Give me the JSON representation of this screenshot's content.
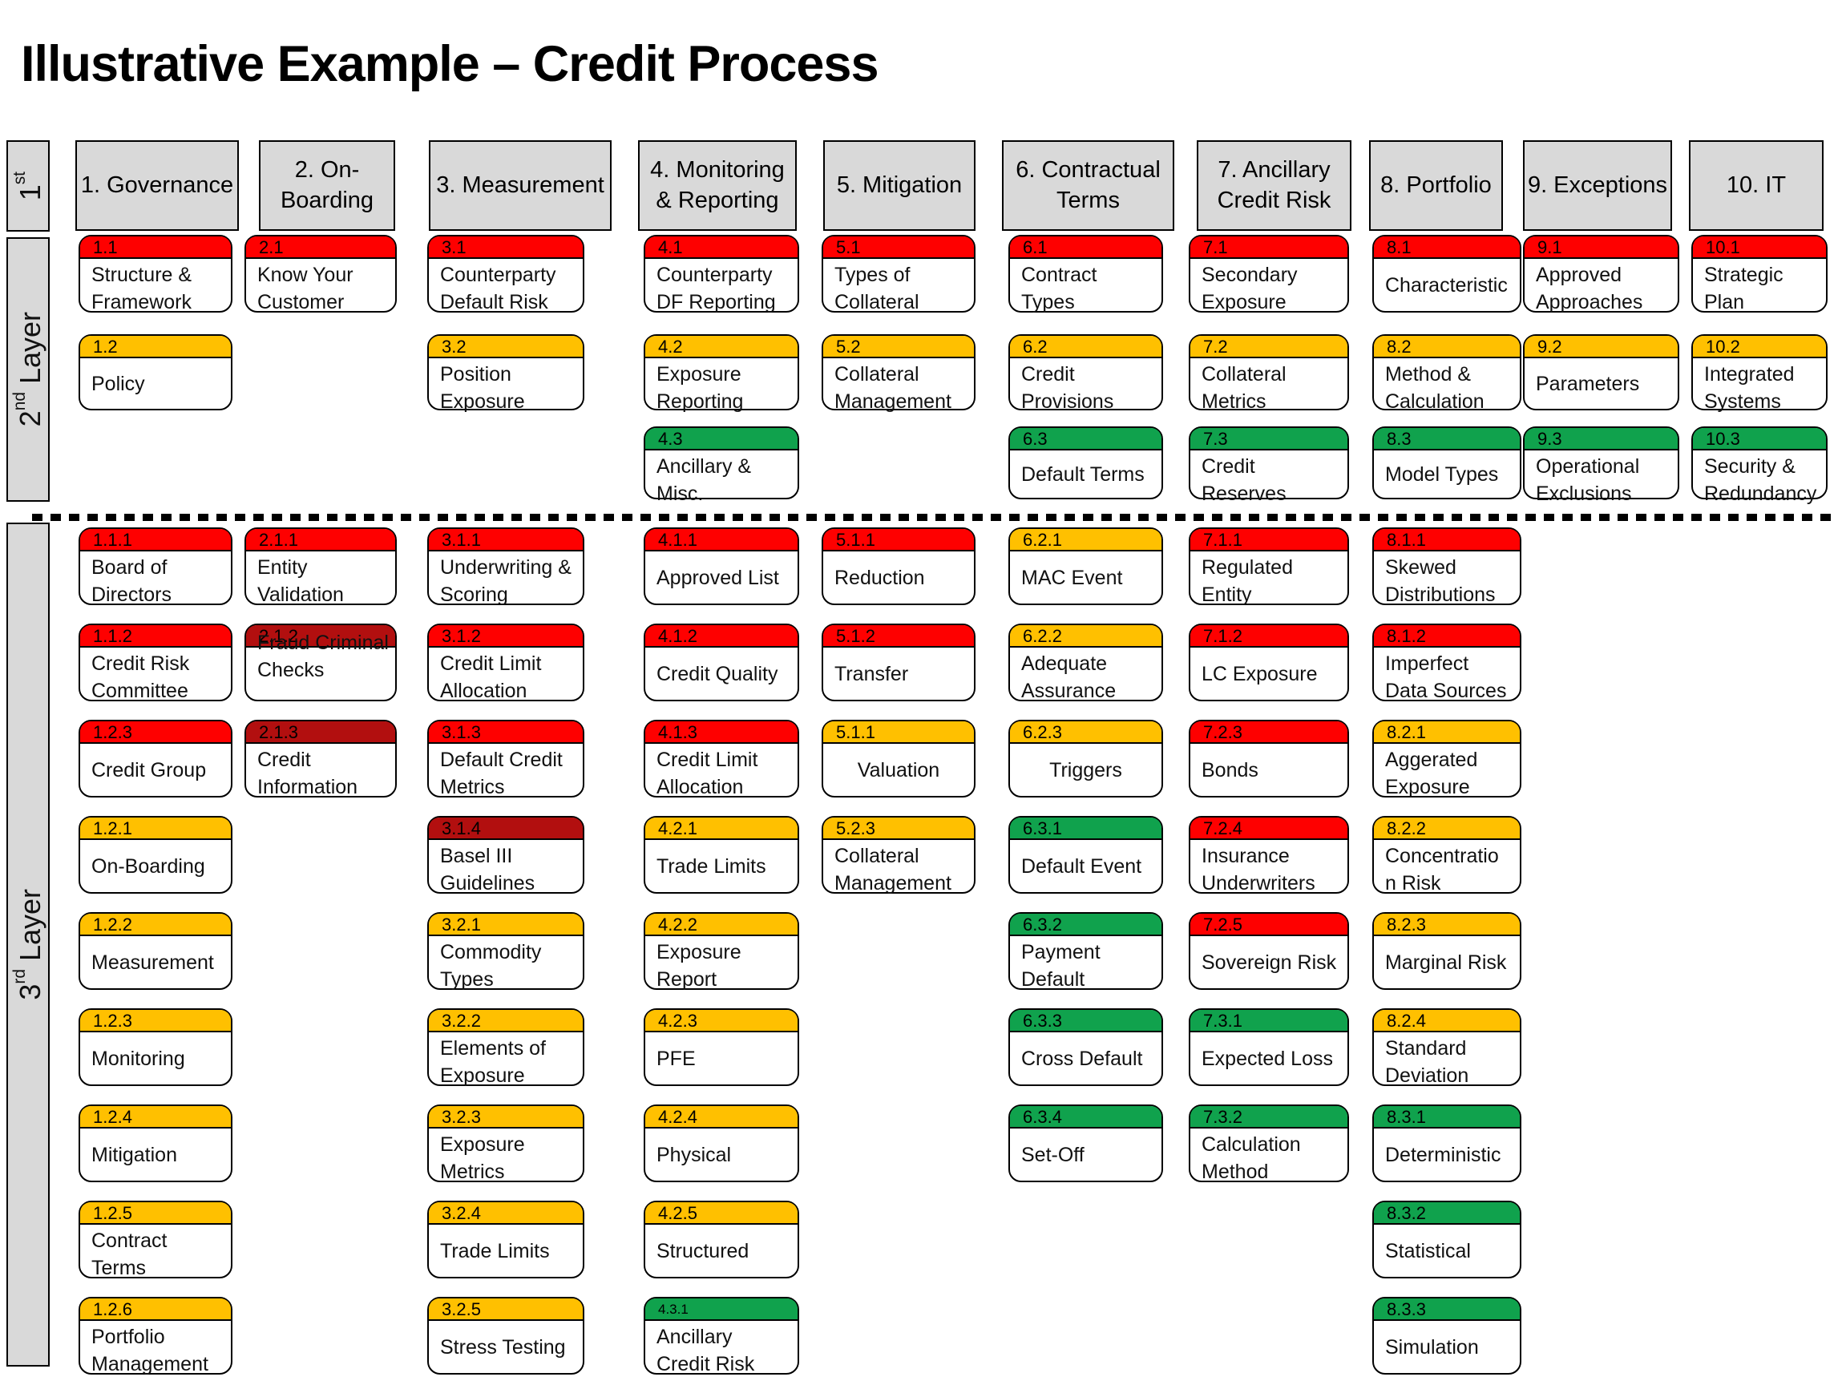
{
  "title": "Illustrative Example – Credit Process",
  "colors": {
    "red": "#FE0000",
    "dark_red": "#B20F0F",
    "amber": "#FFC000",
    "green": "#10A24D",
    "gray": "#D9D9D9"
  },
  "layer_labels": [
    {
      "num": "1",
      "ordinal": "st",
      "rest": ""
    },
    {
      "num": "2",
      "ordinal": "nd",
      "rest": " Layer"
    },
    {
      "num": "3",
      "ordinal": "rd",
      "rest": " Layer"
    }
  ],
  "columns": [
    {
      "header": "1. Governance",
      "layer2": [
        {
          "num": "1.1",
          "label": "Structure & Framework",
          "color": "red",
          "row": 0
        },
        {
          "num": "1.2",
          "label": "Policy",
          "color": "amber",
          "row": 1
        }
      ],
      "layer3": [
        {
          "num": "1.1.1",
          "label": "Board of Directors",
          "color": "red",
          "row": 0
        },
        {
          "num": "1.1.2",
          "label": "Credit Risk Committee",
          "color": "red",
          "row": 1
        },
        {
          "num": "1.2.3",
          "label": "Credit Group",
          "color": "red",
          "row": 2
        },
        {
          "num": "1.2.1",
          "label": "On-Boarding",
          "color": "amber",
          "row": 3
        },
        {
          "num": "1.2.2",
          "label": "Measurement",
          "color": "amber",
          "row": 4
        },
        {
          "num": "1.2.3",
          "label": "Monitoring",
          "color": "amber",
          "row": 5
        },
        {
          "num": "1.2.4",
          "label": "Mitigation",
          "color": "amber",
          "row": 6
        },
        {
          "num": "1.2.5",
          "label": "Contract Terms",
          "color": "amber",
          "row": 7
        },
        {
          "num": "1.2.6",
          "label": "Portfolio Management",
          "color": "amber",
          "row": 8
        }
      ]
    },
    {
      "header": "2. On-\nBoarding",
      "layer2": [
        {
          "num": "2.1",
          "label": "Know Your Customer",
          "color": "red",
          "row": 0
        }
      ],
      "layer3": [
        {
          "num": "2.1.1",
          "label": "Entity Validation",
          "color": "red",
          "row": 0
        },
        {
          "num": "2.1.2",
          "label": "Fraud Criminal Checks",
          "color": "dark_red",
          "row": 1,
          "overlap": true
        },
        {
          "num": "2.1.3",
          "label": "Credit Information",
          "color": "dark_red",
          "row": 2
        }
      ]
    },
    {
      "header": "3. Measurement",
      "layer2": [
        {
          "num": "3.1",
          "label": "Counterparty Default Risk",
          "color": "red",
          "row": 0
        },
        {
          "num": "3.2",
          "label": "Position Exposure",
          "color": "amber",
          "row": 1
        }
      ],
      "layer3": [
        {
          "num": "3.1.1",
          "label": "Underwriting & Scoring",
          "color": "red",
          "row": 0
        },
        {
          "num": "3.1.2",
          "label": "Credit Limit Allocation",
          "color": "red",
          "row": 1
        },
        {
          "num": "3.1.3",
          "label": "Default Credit Metrics",
          "color": "red",
          "row": 2
        },
        {
          "num": "3.1.4",
          "label": "Basel III Guidelines",
          "color": "dark_red",
          "row": 3
        },
        {
          "num": "3.2.1",
          "label": "Commodity Types",
          "color": "amber",
          "row": 4
        },
        {
          "num": "3.2.2",
          "label": "Elements of Exposure",
          "color": "amber",
          "row": 5
        },
        {
          "num": "3.2.3",
          "label": "Exposure Metrics",
          "color": "amber",
          "row": 6
        },
        {
          "num": "3.2.4",
          "label": "Trade Limits",
          "color": "amber",
          "row": 7
        },
        {
          "num": "3.2.5",
          "label": "Stress Testing",
          "color": "amber",
          "row": 8
        }
      ]
    },
    {
      "header": "4.  Monitoring\n& Reporting",
      "layer2": [
        {
          "num": "4.1",
          "label": "Counterparty DF Reporting",
          "color": "red",
          "row": 0
        },
        {
          "num": "4.2",
          "label": "Exposure Reporting",
          "color": "amber",
          "row": 1
        },
        {
          "num": "4.3",
          "label": "Ancillary & Misc.",
          "color": "green",
          "row": 2
        }
      ],
      "layer3": [
        {
          "num": "4.1.1",
          "label": "Approved List",
          "color": "red",
          "row": 0
        },
        {
          "num": "4.1.2",
          "label": "Credit Quality",
          "color": "red",
          "row": 1
        },
        {
          "num": "4.1.3",
          "label": "Credit Limit Allocation",
          "color": "red",
          "row": 2
        },
        {
          "num": "4.2.1",
          "label": "Trade Limits",
          "color": "amber",
          "row": 3
        },
        {
          "num": "4.2.2",
          "label": "Exposure Report",
          "color": "amber",
          "row": 4
        },
        {
          "num": "4.2.3",
          "label": "PFE",
          "color": "amber",
          "row": 5
        },
        {
          "num": "4.2.4",
          "label": "Physical",
          "color": "amber",
          "row": 6
        },
        {
          "num": "4.2.5",
          "label": "Structured",
          "color": "amber",
          "row": 7
        },
        {
          "num": "4.3.1",
          "label": "Ancillary Credit Risk",
          "color": "green",
          "row": 8,
          "small_num": true
        }
      ]
    },
    {
      "header": "5. Mitigation",
      "layer2": [
        {
          "num": "5.1",
          "label": "Types of Collateral",
          "color": "red",
          "row": 0
        },
        {
          "num": "5.2",
          "label": "Collateral Management",
          "color": "amber",
          "row": 1
        }
      ],
      "layer3": [
        {
          "num": "5.1.1",
          "label": "Reduction",
          "color": "red",
          "row": 0
        },
        {
          "num": "5.1.2",
          "label": "Transfer",
          "color": "red",
          "row": 1
        },
        {
          "num": "5.1.1",
          "label": "Valuation",
          "color": "amber",
          "row": 2,
          "center": true
        },
        {
          "num": "5.2.3",
          "label": "Collateral Management",
          "color": "amber",
          "row": 3
        }
      ]
    },
    {
      "header": "6. Contractual\nTerms",
      "layer2": [
        {
          "num": "6.1",
          "label": "Contract Types",
          "color": "red",
          "row": 0
        },
        {
          "num": "6.2",
          "label": "Credit Provisions",
          "color": "amber",
          "row": 1
        },
        {
          "num": "6.3",
          "label": "Default Terms",
          "color": "green",
          "row": 2
        }
      ],
      "layer3": [
        {
          "num": "6.2.1",
          "label": "MAC Event",
          "color": "amber",
          "row": 0
        },
        {
          "num": "6.2.2",
          "label": "Adequate Assurance",
          "color": "amber",
          "row": 1
        },
        {
          "num": "6.2.3",
          "label": "Triggers",
          "color": "amber",
          "row": 2,
          "center": true
        },
        {
          "num": "6.3.1",
          "label": "Default Event",
          "color": "green",
          "row": 3
        },
        {
          "num": "6.3.2",
          "label": "Payment Default",
          "color": "green",
          "row": 4
        },
        {
          "num": "6.3.3",
          "label": "Cross Default",
          "color": "green",
          "row": 5
        },
        {
          "num": "6.3.4",
          "label": "Set-Off",
          "color": "green",
          "row": 6
        }
      ]
    },
    {
      "header": "7. Ancillary\nCredit Risk",
      "layer2": [
        {
          "num": "7.1",
          "label": "Secondary Exposure",
          "color": "red",
          "row": 0
        },
        {
          "num": "7.2",
          "label": "Collateral Metrics",
          "color": "amber",
          "row": 1
        },
        {
          "num": "7.3",
          "label": "Credit Reserves",
          "color": "green",
          "row": 2
        }
      ],
      "layer3": [
        {
          "num": "7.1.1",
          "label": "Regulated Entity",
          "color": "red",
          "row": 0
        },
        {
          "num": "7.1.2",
          "label": "LC Exposure",
          "color": "red",
          "row": 1
        },
        {
          "num": "7.2.3",
          "label": "Bonds",
          "color": "red",
          "row": 2
        },
        {
          "num": "7.2.4",
          "label": "Insurance Underwriters",
          "color": "red",
          "row": 3
        },
        {
          "num": "7.2.5",
          "label": "Sovereign Risk",
          "color": "red",
          "row": 4
        },
        {
          "num": "7.3.1",
          "label": "Expected Loss",
          "color": "green",
          "row": 5
        },
        {
          "num": "7.3.2",
          "label": "Calculation Method",
          "color": "green",
          "row": 6
        }
      ]
    },
    {
      "header": "8. Portfolio",
      "layer2": [
        {
          "num": "8.1",
          "label": "Characteristic",
          "color": "red",
          "row": 0
        },
        {
          "num": "8.2",
          "label": "Method & Calculation",
          "color": "amber",
          "row": 1
        },
        {
          "num": "8.3",
          "label": "Model Types",
          "color": "green",
          "row": 2
        }
      ],
      "layer3": [
        {
          "num": "8.1.1",
          "label": "Skewed Distributions",
          "color": "red",
          "row": 0
        },
        {
          "num": "8.1.2",
          "label": "Imperfect Data Sources",
          "color": "red",
          "row": 1
        },
        {
          "num": "8.2.1",
          "label": "Aggerated Exposure",
          "color": "amber",
          "row": 2
        },
        {
          "num": "8.2.2",
          "label": "Concentratio n Risk",
          "color": "amber",
          "row": 3
        },
        {
          "num": "8.2.3",
          "label": "Marginal Risk",
          "color": "amber",
          "row": 4
        },
        {
          "num": "8.2.4",
          "label": "Standard Deviation",
          "color": "amber",
          "row": 5
        },
        {
          "num": "8.3.1",
          "label": "Deterministic",
          "color": "green",
          "row": 6
        },
        {
          "num": "8.3.2",
          "label": "Statistical",
          "color": "green",
          "row": 7
        },
        {
          "num": "8.3.3",
          "label": "Simulation",
          "color": "green",
          "row": 8
        }
      ]
    },
    {
      "header": "9. Exceptions",
      "layer2": [
        {
          "num": "9.1",
          "label": "Approved Approaches",
          "color": "red",
          "row": 0
        },
        {
          "num": "9.2",
          "label": "Parameters",
          "color": "amber",
          "row": 1
        },
        {
          "num": "9.3",
          "label": "Operational Exclusions",
          "color": "green",
          "row": 2
        }
      ],
      "layer3": []
    },
    {
      "header": "10. IT",
      "layer2": [
        {
          "num": "10.1",
          "label": "Strategic Plan",
          "color": "red",
          "row": 0
        },
        {
          "num": "10.2",
          "label": "Integrated Systems",
          "color": "amber",
          "row": 1
        },
        {
          "num": "10.3",
          "label": "Security & Redundancy",
          "color": "green",
          "row": 2
        }
      ],
      "layer3": []
    }
  ]
}
